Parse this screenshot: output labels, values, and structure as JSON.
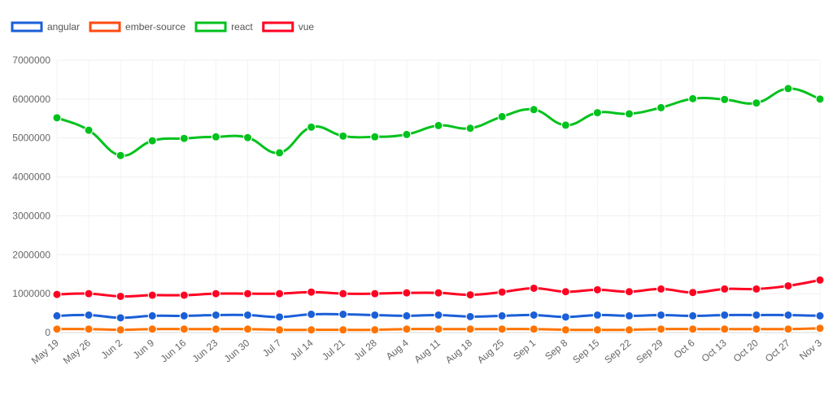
{
  "chart_data": {
    "type": "line",
    "title": "",
    "xlabel": "",
    "ylabel": "",
    "ylim": [
      0,
      7000000
    ],
    "yticks": [
      "0",
      "1000000",
      "2000000",
      "3000000",
      "4000000",
      "5000000",
      "6000000",
      "7000000"
    ],
    "grid": true,
    "legend_position": "top-left",
    "categories": [
      "May 19",
      "May 26",
      "Jun 2",
      "Jun 9",
      "Jun 16",
      "Jun 23",
      "Jun 30",
      "Jul 7",
      "Jul 14",
      "Jul 21",
      "Jul 28",
      "Aug 4",
      "Aug 11",
      "Aug 18",
      "Aug 25",
      "Sep 1",
      "Sep 8",
      "Sep 15",
      "Sep 22",
      "Sep 29",
      "Oct 6",
      "Oct 13",
      "Oct 20",
      "Oct 27",
      "Nov 3"
    ],
    "series": [
      {
        "name": "angular",
        "color": "#1a5fd8",
        "values": [
          430000,
          450000,
          380000,
          430000,
          430000,
          450000,
          450000,
          400000,
          470000,
          470000,
          450000,
          430000,
          450000,
          410000,
          430000,
          450000,
          400000,
          450000,
          430000,
          450000,
          430000,
          450000,
          450000,
          450000,
          430000
        ]
      },
      {
        "name": "ember-source",
        "color": "#ff7300",
        "legend_color": "#ff4a10",
        "values": [
          90000,
          90000,
          70000,
          90000,
          90000,
          90000,
          90000,
          70000,
          70000,
          70000,
          70000,
          90000,
          90000,
          90000,
          90000,
          90000,
          70000,
          70000,
          70000,
          90000,
          90000,
          90000,
          90000,
          90000,
          110000
        ]
      },
      {
        "name": "react",
        "color": "#00c21c",
        "values": [
          5520000,
          5200000,
          4550000,
          4930000,
          4990000,
          5030000,
          5010000,
          4620000,
          5280000,
          5050000,
          5030000,
          5090000,
          5320000,
          5250000,
          5550000,
          5730000,
          5330000,
          5650000,
          5620000,
          5780000,
          6010000,
          5990000,
          5900000,
          6270000,
          6000000
        ]
      },
      {
        "name": "vue",
        "color": "#ff0022",
        "values": [
          980000,
          1000000,
          930000,
          960000,
          960000,
          1000000,
          1000000,
          1000000,
          1040000,
          1000000,
          1000000,
          1020000,
          1020000,
          970000,
          1040000,
          1140000,
          1050000,
          1100000,
          1050000,
          1120000,
          1030000,
          1120000,
          1120000,
          1200000,
          1350000
        ]
      }
    ]
  }
}
